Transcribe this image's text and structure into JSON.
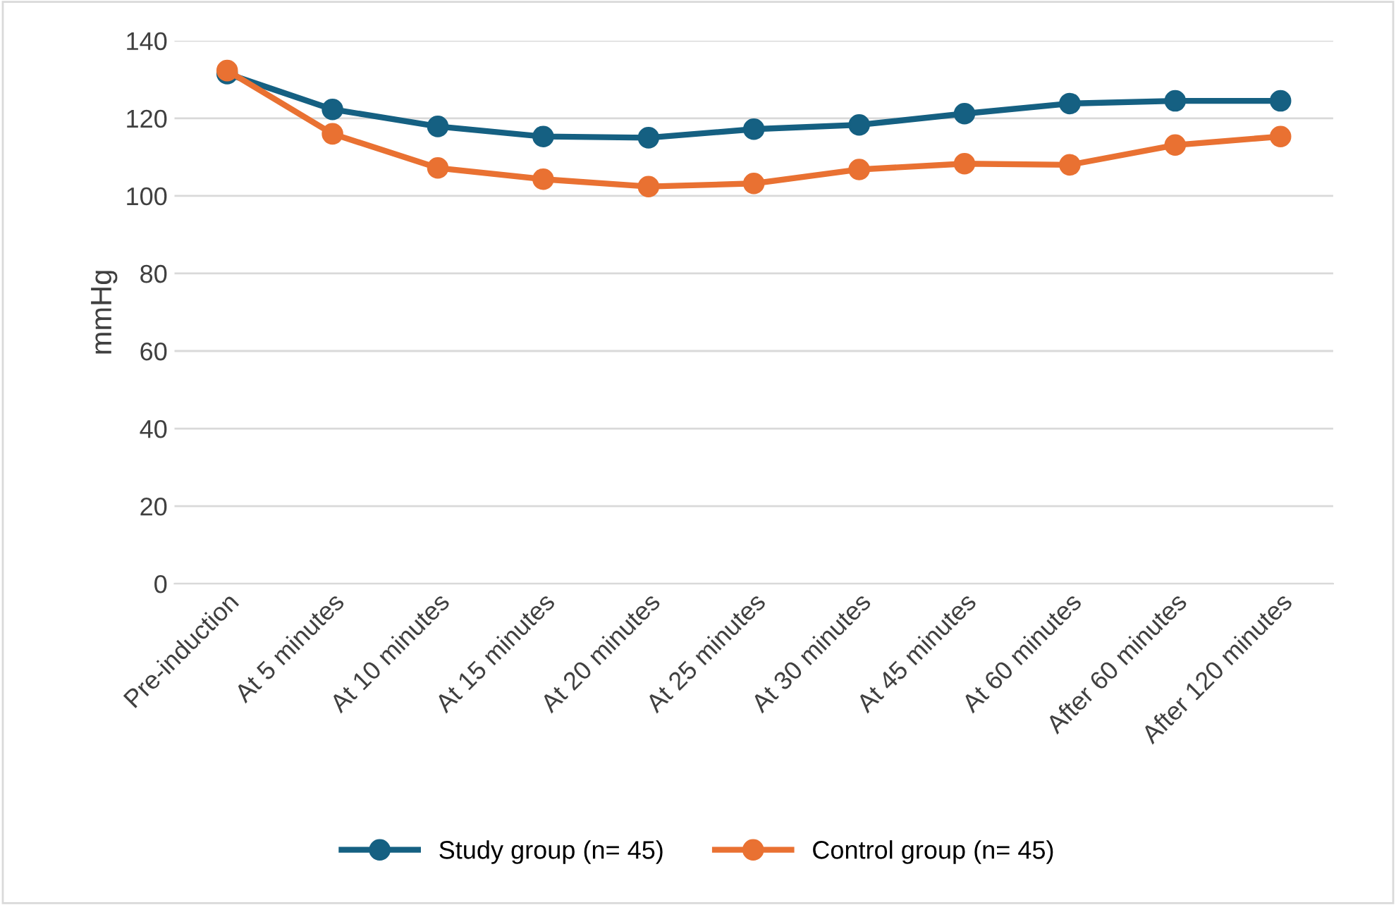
{
  "chart_data": {
    "type": "line",
    "ylabel": "mmHg",
    "categories": [
      "Pre-induction",
      "At 5 minutes",
      "At 10 minutes",
      "At 15 minutes",
      "At 20 minutes",
      "At 25 minutes",
      "At 30 minutes",
      "At 45 minutes",
      "At 60 minutes",
      "After 60 minutes",
      "After 120 minutes"
    ],
    "series": [
      {
        "name": "Study group (n= 45)",
        "color": "#156082",
        "values": [
          131.5,
          122.3,
          117.9,
          115.3,
          115,
          117.2,
          118.3,
          121.2,
          123.8,
          124.5,
          124.5
        ]
      },
      {
        "name": "Control group (n= 45)",
        "color": "#e97132",
        "values": [
          132.3,
          116,
          107.2,
          104.3,
          102.4,
          103.2,
          106.8,
          108.3,
          108,
          113.1,
          115.3
        ]
      }
    ],
    "ylim": [
      0,
      140
    ],
    "yticks": [
      0,
      20,
      40,
      60,
      80,
      100,
      120,
      140
    ],
    "grid": "y",
    "legend": "bottom",
    "marker": "circle",
    "line_style": "solid"
  }
}
